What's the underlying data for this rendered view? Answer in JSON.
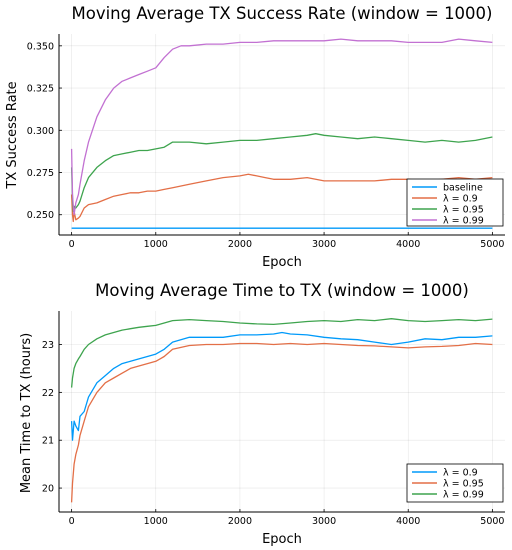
{
  "chart_data": [
    {
      "type": "line",
      "title": "Moving Average TX Success Rate (window = 1000)",
      "xlabel": "Epoch",
      "ylabel": "TX Success Rate",
      "xlim": [
        -150,
        5150
      ],
      "ylim": [
        0.238,
        0.357
      ],
      "xticks": [
        0,
        1000,
        2000,
        3000,
        4000,
        5000
      ],
      "xtick_labels": [
        "0",
        "1000",
        "2000",
        "3000",
        "4000",
        "5000"
      ],
      "yticks": [
        0.25,
        0.275,
        0.3,
        0.325,
        0.35
      ],
      "ytick_labels": [
        "0.250",
        "0.275",
        "0.300",
        "0.325",
        "0.350"
      ],
      "grid": true,
      "legend_position": "bottom-right",
      "series": [
        {
          "name": "baseline",
          "color": "#009AFA",
          "x": [
            0,
            5000
          ],
          "y": [
            0.242,
            0.242
          ]
        },
        {
          "name": "λ = 0.9",
          "color": "#E36F47",
          "x": [
            0,
            10,
            20,
            30,
            50,
            80,
            100,
            150,
            200,
            300,
            400,
            500,
            600,
            700,
            800,
            900,
            1000,
            1100,
            1200,
            1400,
            1600,
            1800,
            2000,
            2100,
            2200,
            2300,
            2400,
            2600,
            2800,
            3000,
            3200,
            3400,
            3600,
            3800,
            4000,
            4200,
            4400,
            4600,
            4800,
            5000
          ],
          "y": [
            0.262,
            0.25,
            0.246,
            0.252,
            0.247,
            0.248,
            0.249,
            0.254,
            0.256,
            0.257,
            0.259,
            0.261,
            0.262,
            0.263,
            0.263,
            0.264,
            0.264,
            0.265,
            0.266,
            0.268,
            0.27,
            0.272,
            0.273,
            0.274,
            0.273,
            0.272,
            0.271,
            0.271,
            0.272,
            0.27,
            0.27,
            0.27,
            0.27,
            0.271,
            0.271,
            0.27,
            0.271,
            0.272,
            0.271,
            0.272
          ]
        },
        {
          "name": "λ = 0.95",
          "color": "#3EA44E",
          "x": [
            0,
            10,
            20,
            30,
            50,
            80,
            100,
            150,
            200,
            300,
            400,
            500,
            600,
            700,
            800,
            900,
            1000,
            1100,
            1200,
            1400,
            1600,
            1800,
            2000,
            2200,
            2400,
            2600,
            2800,
            2900,
            3000,
            3200,
            3400,
            3600,
            3800,
            4000,
            4200,
            4400,
            4600,
            4800,
            5000
          ],
          "y": [
            0.278,
            0.26,
            0.252,
            0.255,
            0.254,
            0.256,
            0.258,
            0.266,
            0.272,
            0.278,
            0.282,
            0.285,
            0.286,
            0.287,
            0.288,
            0.288,
            0.289,
            0.29,
            0.293,
            0.293,
            0.292,
            0.293,
            0.294,
            0.294,
            0.295,
            0.296,
            0.297,
            0.298,
            0.297,
            0.296,
            0.295,
            0.296,
            0.295,
            0.294,
            0.293,
            0.294,
            0.293,
            0.294,
            0.296
          ]
        },
        {
          "name": "λ = 0.99",
          "color": "#C271D2",
          "x": [
            0,
            10,
            20,
            30,
            50,
            80,
            100,
            150,
            200,
            300,
            400,
            500,
            600,
            700,
            800,
            900,
            1000,
            1050,
            1100,
            1200,
            1300,
            1400,
            1600,
            1800,
            2000,
            2200,
            2400,
            2600,
            2800,
            3000,
            3200,
            3400,
            3600,
            3800,
            4000,
            4200,
            4400,
            4600,
            4800,
            5000
          ],
          "y": [
            0.289,
            0.262,
            0.255,
            0.25,
            0.257,
            0.262,
            0.268,
            0.282,
            0.293,
            0.308,
            0.318,
            0.325,
            0.329,
            0.331,
            0.333,
            0.335,
            0.337,
            0.34,
            0.343,
            0.348,
            0.35,
            0.35,
            0.351,
            0.351,
            0.352,
            0.352,
            0.353,
            0.353,
            0.353,
            0.353,
            0.354,
            0.353,
            0.353,
            0.353,
            0.352,
            0.352,
            0.352,
            0.354,
            0.353,
            0.352
          ]
        }
      ]
    },
    {
      "type": "line",
      "title": "Moving Average Time to TX (window = 1000)",
      "xlabel": "Epoch",
      "ylabel": "Mean Time to TX (hours)",
      "xlim": [
        -150,
        5150
      ],
      "ylim": [
        19.5,
        23.7
      ],
      "xticks": [
        0,
        1000,
        2000,
        3000,
        4000,
        5000
      ],
      "xtick_labels": [
        "0",
        "1000",
        "2000",
        "3000",
        "4000",
        "5000"
      ],
      "yticks": [
        20,
        21,
        22,
        23
      ],
      "ytick_labels": [
        "20",
        "21",
        "22",
        "23"
      ],
      "grid": true,
      "legend_position": "bottom-right",
      "series": [
        {
          "name": "λ = 0.9",
          "color": "#009AFA",
          "x": [
            0,
            10,
            20,
            30,
            50,
            80,
            100,
            150,
            200,
            300,
            400,
            500,
            600,
            700,
            800,
            900,
            1000,
            1050,
            1100,
            1200,
            1400,
            1600,
            1800,
            2000,
            2200,
            2400,
            2500,
            2600,
            2800,
            3000,
            3200,
            3400,
            3600,
            3800,
            4000,
            4200,
            4400,
            4600,
            4800,
            5000
          ],
          "y": [
            21.4,
            21.0,
            21.2,
            21.4,
            21.3,
            21.2,
            21.5,
            21.6,
            21.9,
            22.2,
            22.35,
            22.5,
            22.6,
            22.65,
            22.7,
            22.75,
            22.8,
            22.85,
            22.9,
            23.05,
            23.15,
            23.15,
            23.15,
            23.2,
            23.2,
            23.22,
            23.25,
            23.22,
            23.2,
            23.15,
            23.12,
            23.1,
            23.05,
            23.0,
            23.05,
            23.12,
            23.1,
            23.15,
            23.15,
            23.18
          ]
        },
        {
          "name": "λ = 0.95",
          "color": "#E36F47",
          "x": [
            0,
            10,
            20,
            30,
            50,
            80,
            100,
            150,
            200,
            300,
            400,
            500,
            600,
            700,
            800,
            900,
            1000,
            1050,
            1100,
            1200,
            1400,
            1600,
            1800,
            2000,
            2200,
            2400,
            2600,
            2800,
            3000,
            3200,
            3400,
            3600,
            3800,
            4000,
            4200,
            4400,
            4600,
            4800,
            5000
          ],
          "y": [
            19.7,
            20.1,
            20.3,
            20.5,
            20.7,
            20.9,
            21.1,
            21.4,
            21.7,
            22.0,
            22.2,
            22.3,
            22.4,
            22.5,
            22.55,
            22.6,
            22.65,
            22.7,
            22.75,
            22.9,
            22.98,
            23.0,
            23.0,
            23.02,
            23.02,
            23.0,
            23.02,
            23.0,
            23.02,
            23.0,
            22.98,
            22.97,
            22.95,
            22.93,
            22.95,
            22.96,
            22.98,
            23.02,
            23.0
          ]
        },
        {
          "name": "λ = 0.99",
          "color": "#3EA44E",
          "x": [
            0,
            10,
            20,
            30,
            50,
            80,
            100,
            150,
            200,
            300,
            400,
            500,
            600,
            700,
            800,
            900,
            1000,
            1100,
            1200,
            1400,
            1600,
            1800,
            2000,
            2200,
            2400,
            2600,
            2800,
            3000,
            3200,
            3400,
            3600,
            3800,
            4000,
            4200,
            4400,
            4600,
            4800,
            5000
          ],
          "y": [
            22.1,
            22.3,
            22.4,
            22.5,
            22.6,
            22.7,
            22.75,
            22.9,
            23.0,
            23.12,
            23.2,
            23.25,
            23.3,
            23.33,
            23.36,
            23.38,
            23.4,
            23.45,
            23.5,
            23.52,
            23.5,
            23.48,
            23.45,
            23.43,
            23.42,
            23.45,
            23.48,
            23.5,
            23.48,
            23.52,
            23.5,
            23.54,
            23.5,
            23.48,
            23.5,
            23.52,
            23.5,
            23.53
          ]
        }
      ]
    }
  ]
}
